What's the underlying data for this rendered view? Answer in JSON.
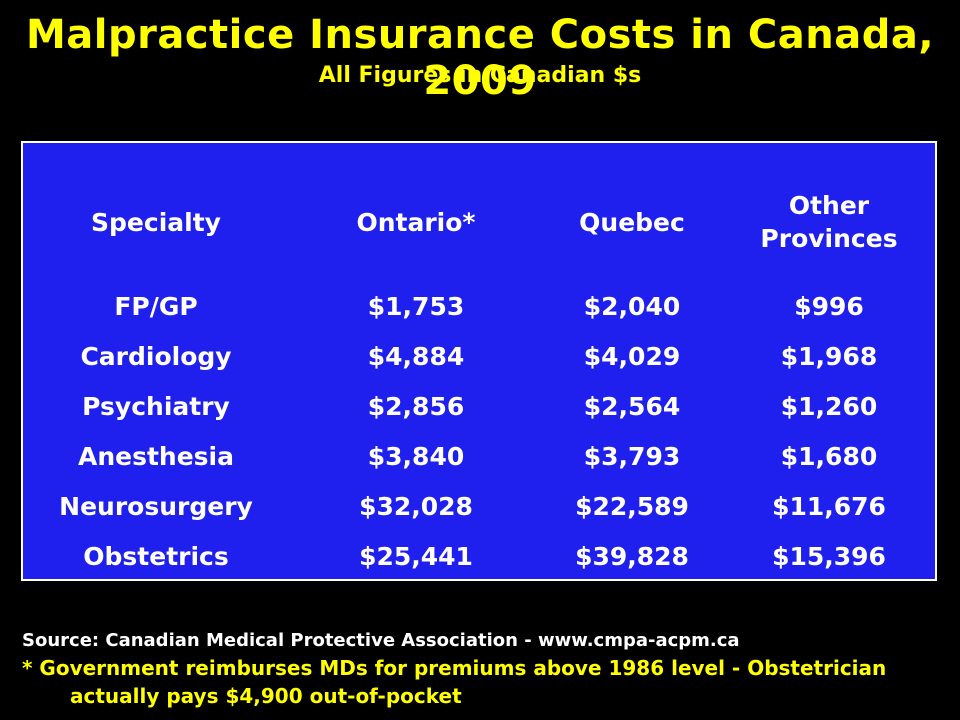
{
  "title": "Malpractice Insurance Costs in Canada, 2009",
  "subtitle": "All Figures in Canadian $s",
  "chart_data": {
    "type": "table",
    "columns": [
      "Specialty",
      "Ontario*",
      "Quebec",
      "Other Provinces"
    ],
    "rows": [
      [
        "FP/GP",
        "$1,753",
        "$2,040",
        "$996"
      ],
      [
        "Cardiology",
        "$4,884",
        "$4,029",
        "$1,968"
      ],
      [
        "Psychiatry",
        "$2,856",
        "$2,564",
        "$1,260"
      ],
      [
        "Anesthesia",
        "$3,840",
        "$3,793",
        "$1,680"
      ],
      [
        "Neurosurgery",
        "$32,028",
        "$22,589",
        "$11,676"
      ],
      [
        "Obstetrics",
        "$25,441",
        "$39,828",
        "$15,396"
      ]
    ]
  },
  "source": "Source: Canadian Medical Protective Association - www.cmpa-acpm.ca",
  "footnote_line1": "* Government reimburses MDs for premiums above 1986 level - Obstetrician",
  "footnote_line2": "actually pays $4,900 out-of-pocket",
  "colors": {
    "background": "#000000",
    "title": "#ffff00",
    "panel": "#2020ee",
    "panel_text": "#ffffff"
  }
}
